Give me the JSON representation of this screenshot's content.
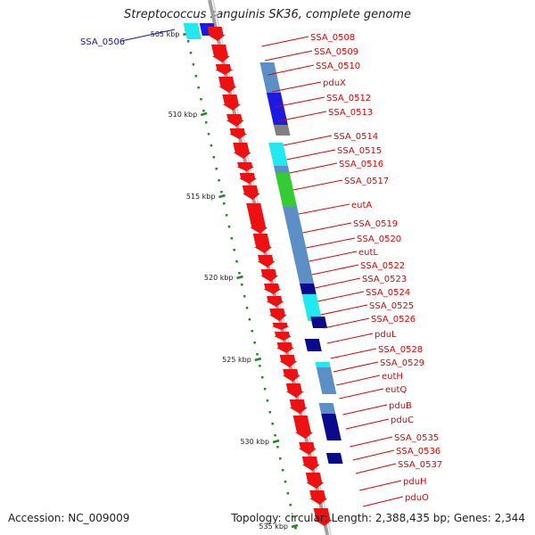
{
  "header": {
    "title": "Streptococcus sanguinis SK36, complete genome"
  },
  "footer": {
    "accession": "Accession: NC_009009",
    "summary": "Topology: circular; Length: 2,388,435 bp; Genes: 2,344"
  },
  "colors": {
    "forward_cds": "#ee1111",
    "label": "#e00000",
    "label_highlight": "#1010c0",
    "backbone": "#888888",
    "scale_ticks": "#228822",
    "cog_steelblue": "#5b8fc6",
    "cog_navy": "#0a0a8a",
    "cog_blue": "#1a1ae0",
    "cog_cyan": "#22e8f0",
    "cog_green": "#33cc33",
    "cog_gray": "#808080"
  },
  "scale": {
    "ticks": [
      "505 kbp",
      "510 kbp",
      "515 kbp",
      "520 kbp",
      "525 kbp",
      "530 kbp",
      "535 kbp"
    ]
  },
  "genes": [
    {
      "label": "SSA_0506",
      "highlight": true
    },
    {
      "label": "SSA_0508"
    },
    {
      "label": "SSA_0509"
    },
    {
      "label": "SSA_0510"
    },
    {
      "label": "pduX"
    },
    {
      "label": "SSA_0512"
    },
    {
      "label": "SSA_0513"
    },
    {
      "label": "SSA_0514"
    },
    {
      "label": "SSA_0515"
    },
    {
      "label": "SSA_0516"
    },
    {
      "label": "SSA_0517"
    },
    {
      "label": "eutA"
    },
    {
      "label": "SSA_0519"
    },
    {
      "label": "SSA_0520"
    },
    {
      "label": "eutL"
    },
    {
      "label": "SSA_0522"
    },
    {
      "label": "SSA_0523"
    },
    {
      "label": "SSA_0524"
    },
    {
      "label": "SSA_0525"
    },
    {
      "label": "SSA_0526"
    },
    {
      "label": "pduL"
    },
    {
      "label": "SSA_0528"
    },
    {
      "label": "SSA_0529"
    },
    {
      "label": "eutH"
    },
    {
      "label": "eutQ"
    },
    {
      "label": "pduB"
    },
    {
      "label": "pduC"
    },
    {
      "label": "SSA_0535"
    },
    {
      "label": "SSA_0536"
    },
    {
      "label": "SSA_0537"
    },
    {
      "label": "pduH"
    },
    {
      "label": "pduO"
    }
  ]
}
